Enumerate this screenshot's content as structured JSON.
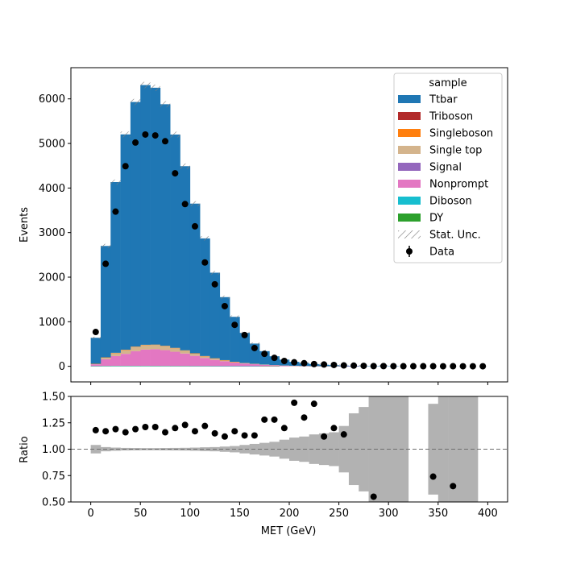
{
  "chart_data": [
    {
      "type": "bar",
      "stacked": true,
      "panel": "main",
      "ylabel": "Events",
      "ylim": [
        -350,
        6700
      ],
      "yticks": [
        0,
        1000,
        2000,
        3000,
        4000,
        5000,
        6000
      ],
      "bin_edges": [
        0,
        10,
        20,
        30,
        40,
        50,
        60,
        70,
        80,
        90,
        100,
        110,
        120,
        130,
        140,
        150,
        160,
        170,
        180,
        190,
        200,
        210,
        220,
        230,
        240,
        250,
        260,
        270,
        280,
        290,
        300,
        310,
        320,
        330,
        340,
        350,
        360,
        370,
        380,
        390,
        400
      ],
      "colors": {
        "Ttbar": "#1f77b4",
        "Triboson": "#b22a2a",
        "Singleboson": "#ff7f0e",
        "Single top": "#d4b48c",
        "Signal": "#9467bd",
        "Nonprompt": "#e377c2",
        "Diboson": "#17becf",
        "DY": "#2ca02c",
        "Stat. Unc.": "#808080",
        "Data": "#000000"
      },
      "series": [
        {
          "name": "DY",
          "values": [
            3,
            5,
            6,
            6,
            6,
            6,
            5,
            5,
            4,
            4,
            3,
            3,
            2,
            2,
            2,
            1,
            1,
            1,
            1,
            0,
            0,
            0,
            0,
            0,
            0,
            0,
            0,
            0,
            0,
            0,
            0,
            0,
            0,
            0,
            0,
            0,
            0,
            0,
            0,
            0
          ]
        },
        {
          "name": "Diboson",
          "values": [
            2,
            3,
            4,
            4,
            4,
            4,
            4,
            3,
            3,
            3,
            2,
            2,
            2,
            1,
            1,
            1,
            1,
            0,
            0,
            0,
            0,
            0,
            0,
            0,
            0,
            0,
            0,
            0,
            0,
            0,
            0,
            0,
            0,
            0,
            0,
            0,
            0,
            0,
            0,
            0
          ]
        },
        {
          "name": "Nonprompt",
          "values": [
            40,
            150,
            220,
            270,
            330,
            365,
            375,
            355,
            320,
            280,
            230,
            180,
            140,
            110,
            80,
            60,
            45,
            32,
            22,
            15,
            10,
            6,
            4,
            3,
            2,
            1,
            1,
            0,
            0,
            0,
            0,
            0,
            0,
            0,
            0,
            0,
            0,
            0,
            0,
            0
          ]
        },
        {
          "name": "Signal",
          "values": [
            0,
            0,
            0,
            0,
            0,
            0,
            0,
            0,
            0,
            0,
            0,
            0,
            0,
            0,
            0,
            0,
            0,
            0,
            0,
            0,
            0,
            0,
            0,
            0,
            0,
            0,
            0,
            0,
            0,
            0,
            0,
            0,
            0,
            0,
            0,
            0,
            0,
            0,
            0,
            0
          ]
        },
        {
          "name": "Single top",
          "values": [
            10,
            40,
            70,
            90,
            100,
            105,
            100,
            95,
            85,
            70,
            55,
            45,
            35,
            25,
            18,
            13,
            10,
            7,
            5,
            3,
            2,
            2,
            1,
            1,
            1,
            0,
            0,
            0,
            0,
            0,
            0,
            0,
            0,
            0,
            0,
            0,
            0,
            0,
            0,
            0
          ]
        },
        {
          "name": "Singleboson",
          "values": [
            1,
            2,
            3,
            3,
            3,
            3,
            3,
            3,
            2,
            2,
            2,
            1,
            1,
            1,
            1,
            0,
            0,
            0,
            0,
            0,
            0,
            0,
            0,
            0,
            0,
            0,
            0,
            0,
            0,
            0,
            0,
            0,
            0,
            0,
            0,
            0,
            0,
            0,
            0,
            0
          ]
        },
        {
          "name": "Triboson",
          "values": [
            0,
            0,
            0,
            0,
            0,
            0,
            0,
            0,
            0,
            0,
            0,
            0,
            0,
            0,
            0,
            0,
            0,
            0,
            0,
            0,
            0,
            0,
            0,
            0,
            0,
            0,
            0,
            0,
            0,
            0,
            0,
            0,
            0,
            0,
            0,
            0,
            0,
            0,
            0,
            0
          ]
        },
        {
          "name": "Ttbar",
          "values": [
            584,
            2500,
            3830,
            4830,
            5487,
            5827,
            5763,
            5419,
            4786,
            4131,
            3358,
            2639,
            1920,
            1413,
            1008,
            675,
            453,
            300,
            197,
            132,
            88,
            62,
            45,
            31,
            22,
            15,
            9,
            6,
            4,
            2,
            1,
            0,
            0,
            0,
            0,
            0,
            0,
            0,
            0,
            0
          ]
        }
      ],
      "data_points": {
        "name": "Data",
        "x": [
          5,
          15,
          25,
          35,
          45,
          55,
          65,
          75,
          85,
          95,
          105,
          115,
          125,
          135,
          145,
          155,
          165,
          175,
          185,
          195,
          205,
          215,
          225,
          235,
          245,
          255,
          265,
          275,
          285,
          295,
          305,
          315,
          325,
          335,
          345,
          355,
          365,
          375,
          385,
          395
        ],
        "y": [
          770,
          2300,
          3470,
          4490,
          5020,
          5200,
          5180,
          5050,
          4330,
          3640,
          3140,
          2330,
          1840,
          1350,
          930,
          700,
          410,
          280,
          190,
          120,
          90,
          70,
          50,
          40,
          30,
          20,
          15,
          10,
          5,
          5,
          3,
          2,
          2,
          2,
          2,
          1,
          2,
          1,
          1,
          1
        ]
      },
      "legend": {
        "title": "sample",
        "position": "top-right",
        "entries": [
          "Ttbar",
          "Triboson",
          "Singleboson",
          "Single top",
          "Signal",
          "Nonprompt",
          "Diboson",
          "DY",
          "Stat. Unc.",
          "Data"
        ]
      }
    },
    {
      "type": "scatter",
      "panel": "ratio",
      "xlabel": "MET (GeV)",
      "ylabel": "Ratio",
      "xlim": [
        -20,
        420
      ],
      "ylim": [
        0.5,
        1.5
      ],
      "xticks": [
        0,
        50,
        100,
        150,
        200,
        250,
        300,
        350,
        400
      ],
      "yticks": [
        0.5,
        0.75,
        1.0,
        1.25,
        1.5
      ],
      "ytick_labels": [
        "0.50",
        "0.75",
        "1.00",
        "1.25",
        "1.50"
      ],
      "reference_line": 1.0,
      "x": [
        5,
        15,
        25,
        35,
        45,
        55,
        65,
        75,
        85,
        95,
        105,
        115,
        125,
        135,
        145,
        155,
        165,
        175,
        185,
        195,
        205,
        215,
        225,
        235,
        245,
        255,
        285,
        345,
        365
      ],
      "y": [
        1.18,
        1.17,
        1.19,
        1.16,
        1.19,
        1.21,
        1.21,
        1.16,
        1.2,
        1.23,
        1.17,
        1.22,
        1.15,
        1.12,
        1.17,
        1.13,
        1.13,
        1.28,
        1.28,
        1.2,
        1.44,
        1.3,
        1.43,
        1.12,
        1.2,
        1.14,
        0.55,
        0.74,
        0.65
      ],
      "stat_unc": [
        0.04,
        0.02,
        0.015,
        0.012,
        0.011,
        0.01,
        0.01,
        0.011,
        0.012,
        0.013,
        0.015,
        0.018,
        0.02,
        0.025,
        0.03,
        0.04,
        0.05,
        0.06,
        0.07,
        0.09,
        0.11,
        0.12,
        0.14,
        0.15,
        0.16,
        0.22,
        0.34,
        0.4,
        0.6,
        0.8,
        1.0,
        1.0,
        null,
        null,
        0.43,
        1.0,
        1.0,
        1.0,
        1.0,
        null
      ]
    }
  ]
}
